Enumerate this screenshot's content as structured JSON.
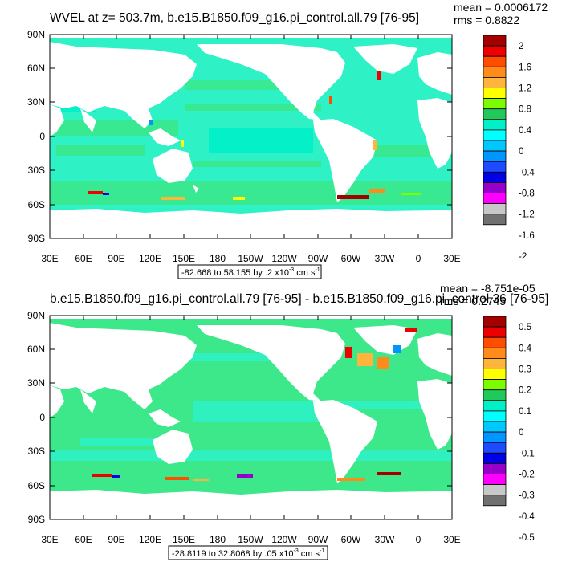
{
  "panels": [
    {
      "title": "WVEL at z= 503.7m, b.e15.B1850.f09_g16.pi_control.all.79 [76-95]",
      "stat_mean": "mean = 0.0006172",
      "stat_rms": "rms = 0.8822",
      "range_text": "-82.668 to 58.155 by .2 x10",
      "units_exp": "-3",
      "units_text": " cm s",
      "units_exp2": "-1",
      "colorbar_labels": [
        "2",
        "1.6",
        "1.2",
        "0.8",
        "0.4",
        "0",
        "-0.4",
        "-0.8",
        "-1.2",
        "-1.6",
        "-2"
      ]
    },
    {
      "title": "b.e15.B1850.f09_g16.pi_control.all.79 [76-95] - b.e15.B1850.f09_g16.pi_control.36 [76-95]",
      "stat_mean": "mean = -8.751e-05",
      "stat_rms": "rms = 0.2745",
      "range_text": "-28.8119 to 32.8068 by .05 x10",
      "units_exp": "-3",
      "units_text": " cm s",
      "units_exp2": "-1",
      "colorbar_labels": [
        "0.5",
        "0.4",
        "0.3",
        "0.2",
        "0.1",
        "0",
        "-0.1",
        "-0.2",
        "-0.3",
        "-0.4",
        "-0.5"
      ]
    }
  ],
  "map_axes": {
    "lat_labels": [
      "90N",
      "60N",
      "30N",
      "0",
      "30S",
      "60S",
      "90S"
    ],
    "lon_labels": [
      "30E",
      "60E",
      "90E",
      "120E",
      "150E",
      "180",
      "150W",
      "120W",
      "90W",
      "60W",
      "30W",
      "0",
      "30E"
    ]
  },
  "colors": {
    "colorbar": [
      "#a50000",
      "#ee0000",
      "#ff4d00",
      "#ff8c1a",
      "#ffb43c",
      "#ffff00",
      "#7cfc00",
      "#21c85a",
      "#00f0c8",
      "#00ffff",
      "#00c8ff",
      "#0096ff",
      "#1e4bff",
      "#0000e6",
      "#9600c8",
      "#ff00ff",
      "#c8c8c8",
      "#707070"
    ],
    "ocean": "#2ef2c6",
    "ocean_alt": "#3ce88a",
    "land": "#ffffff"
  }
}
